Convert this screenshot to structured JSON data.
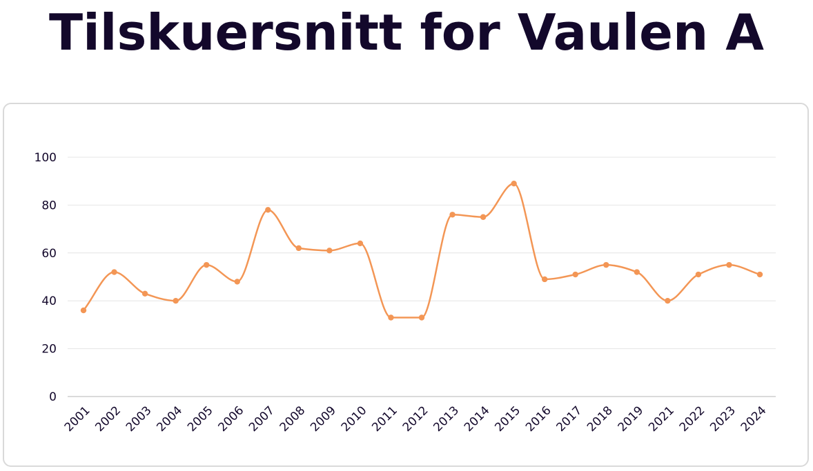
{
  "page": {
    "title": "Tilskuersnitt for Vaulen A"
  },
  "colors": {
    "line": "#f39655",
    "text": "#13082b",
    "grid": "#e4e4e4",
    "axis": "#b5b5b5"
  },
  "chart_data": {
    "type": "line",
    "title": "Tilskuersnitt for Vaulen A",
    "xlabel": "",
    "ylabel": "",
    "ylim": [
      0,
      100
    ],
    "yticks": [
      0,
      20,
      40,
      60,
      80,
      100
    ],
    "grid": true,
    "legend": "none",
    "categories": [
      "2001",
      "2002",
      "2003",
      "2004",
      "2005",
      "2006",
      "2007",
      "2008",
      "2009",
      "2010",
      "2011",
      "2012",
      "2013",
      "2014",
      "2015",
      "2016",
      "2017",
      "2018",
      "2019",
      "2021",
      "2022",
      "2023",
      "2024"
    ],
    "series": [
      {
        "values": [
          36,
          52,
          43,
          40,
          55,
          48,
          78,
          62,
          61,
          64,
          33,
          33,
          76,
          75,
          89,
          49,
          51,
          55,
          52,
          40,
          51,
          55,
          51
        ]
      }
    ]
  }
}
